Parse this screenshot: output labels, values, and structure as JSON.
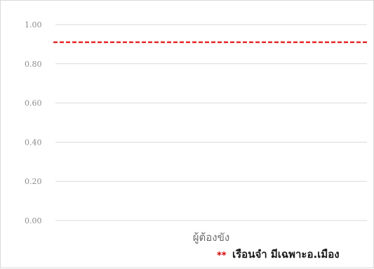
{
  "chart_data": {
    "type": "line",
    "categories": [
      "ผู้ต้องขัง"
    ],
    "series": [
      {
        "values": [
          0.91
        ],
        "color": "#e31a1c",
        "style": "dashed"
      }
    ],
    "ylim": [
      0,
      1
    ],
    "yticks": [
      "0.00",
      "0.20",
      "0.40",
      "0.60",
      "0.80",
      "1.00"
    ],
    "grid": true,
    "gridColor": "#d9d9d9",
    "annotation": {
      "marker": "**",
      "text": "เรือนจำ มีเฉพาะอ.เมือง"
    }
  }
}
